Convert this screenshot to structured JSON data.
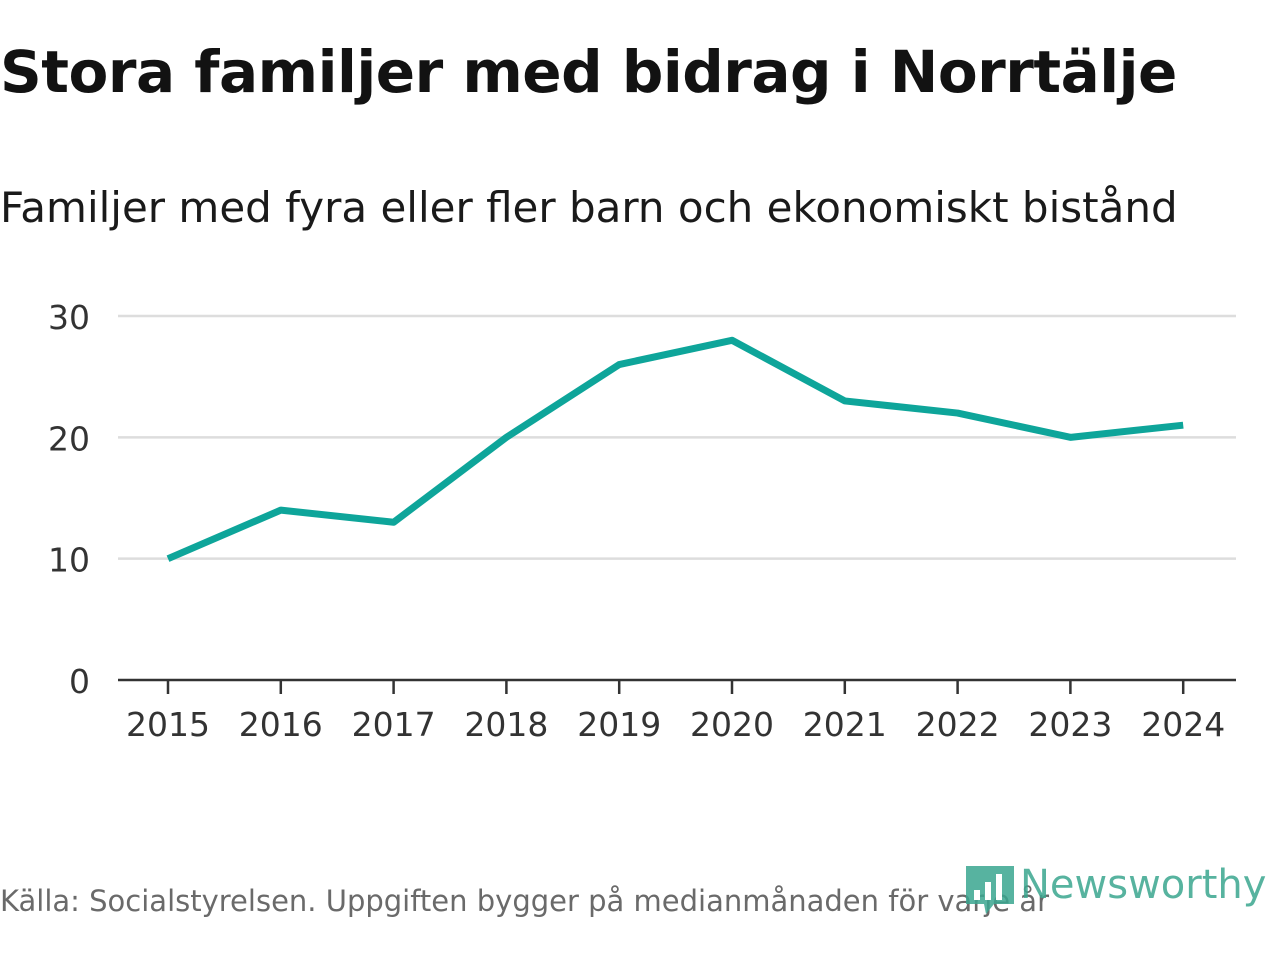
{
  "title": "Stora familjer med bidrag i Norrtälje",
  "subtitle": "Familjer med fyra eller fler barn och ekonomiskt bistånd",
  "source": "Källa: Socialstyrelsen. Uppgiften bygger på medianmånaden för varje år",
  "brand": {
    "name": "Newsworthy",
    "color": "#3aa68f",
    "icon": "newsworthy-logo-icon"
  },
  "colors": {
    "line": "#0ea59a",
    "grid": "#dddddd",
    "axis": "#333333",
    "tick_text": "#333333"
  },
  "chart_data": {
    "type": "line",
    "title": "Stora familjer med bidrag i Norrtälje",
    "subtitle": "Familjer med fyra eller fler barn och ekonomiskt bistånd",
    "xlabel": "",
    "ylabel": "",
    "categories": [
      "2015",
      "2016",
      "2017",
      "2018",
      "2019",
      "2020",
      "2021",
      "2022",
      "2023",
      "2024"
    ],
    "series": [
      {
        "name": "Familjer med fyra eller fler barn och ekonomiskt bistånd",
        "values": [
          10,
          14,
          13,
          20,
          26,
          28,
          23,
          22,
          20,
          21
        ]
      }
    ],
    "ylim": [
      0,
      30
    ],
    "yticks": [
      0,
      10,
      20,
      30
    ],
    "grid": true,
    "legend": "none"
  }
}
